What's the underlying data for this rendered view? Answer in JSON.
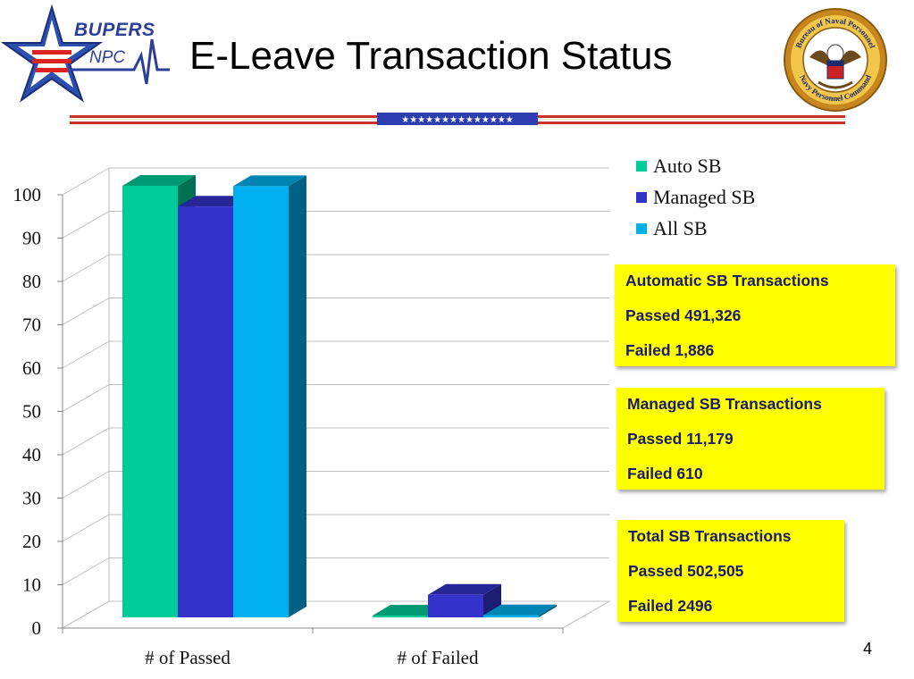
{
  "logo": {
    "line1": "BUPERS",
    "line2": "NPC"
  },
  "title": "E-Leave Transaction Status",
  "seal": {
    "top_text": "Bureau of Naval Personnel",
    "bottom_text": "Navy Personnel Command"
  },
  "divider": {
    "stars": "★★★★★★★★★★★★★★"
  },
  "colors": {
    "auto_sb": "#00cc99",
    "managed_sb": "#3333cc",
    "all_sb": "#00b0f0",
    "box_fill": "#ffff00",
    "box_text": "#1a1a6a"
  },
  "chart_data": {
    "type": "bar",
    "style": "3d-clustered",
    "categories": [
      "# of Passed",
      "# of Failed"
    ],
    "series": [
      {
        "name": "Auto SB",
        "values": [
          99.6,
          0.4
        ]
      },
      {
        "name": "Managed SB",
        "values": [
          94.8,
          5.2
        ]
      },
      {
        "name": "All SB",
        "values": [
          99.5,
          0.5
        ]
      }
    ],
    "ylim": [
      0,
      100
    ],
    "yticks": [
      "0",
      "10",
      "20",
      "30",
      "40",
      "50",
      "60",
      "70",
      "80",
      "90",
      "100"
    ],
    "grid": true,
    "legend_position": "top-right"
  },
  "boxes": [
    {
      "heading": "Automatic SB  Transactions",
      "passed": "Passed  491,326",
      "failed": "Failed 1,886"
    },
    {
      "heading": "Managed SB  Transactions",
      "passed": "Passed  11,179",
      "failed": "Failed 610"
    },
    {
      "heading": "Total SB  Transactions",
      "passed": "Passed  502,505",
      "failed": "Failed 2496"
    }
  ],
  "page_number": "4"
}
